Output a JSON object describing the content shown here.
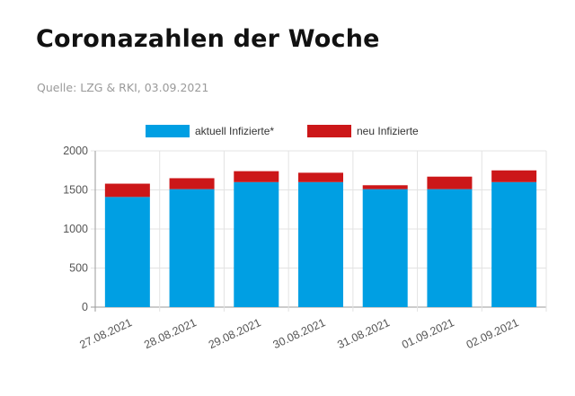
{
  "header": {
    "title": "Coronazahlen der Woche",
    "source": "Quelle: LZG & RKI, 03.09.2021"
  },
  "chart_data": {
    "type": "bar",
    "stacked": true,
    "categories": [
      "27.08.2021",
      "28.08.2021",
      "29.08.2021",
      "30.08.2021",
      "31.08.2021",
      "01.09.2021",
      "02.09.2021"
    ],
    "series": [
      {
        "name": "aktuell Infizierte*",
        "color": "#009fe3",
        "values": [
          1410,
          1510,
          1600,
          1600,
          1510,
          1510,
          1600
        ]
      },
      {
        "name": "neu Infizierte",
        "color": "#cc1719",
        "values": [
          170,
          140,
          140,
          120,
          50,
          160,
          150
        ]
      }
    ],
    "ylim": [
      0,
      2000
    ],
    "yticks": [
      0,
      500,
      1000,
      1500,
      2000
    ],
    "grid": true,
    "legend": "top-center",
    "xlabel": "",
    "ylabel": ""
  }
}
